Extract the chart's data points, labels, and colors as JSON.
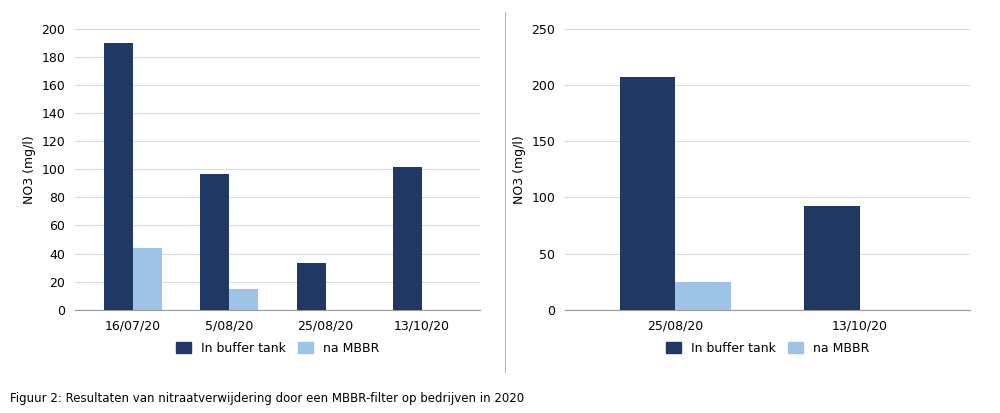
{
  "chart1": {
    "categories": [
      "16/07/20",
      "5/08/20",
      "25/08/20",
      "13/10/20"
    ],
    "in_buffer_tank": [
      190,
      97,
      33,
      102
    ],
    "na_mbbr": [
      44,
      15,
      0,
      0
    ],
    "ylabel": "NO3 (mg/l)",
    "ylim": [
      0,
      200
    ],
    "yticks": [
      0,
      20,
      40,
      60,
      80,
      100,
      120,
      140,
      160,
      180,
      200
    ]
  },
  "chart2": {
    "categories": [
      "25/08/20",
      "13/10/20"
    ],
    "in_buffer_tank": [
      207,
      92
    ],
    "na_mbbr": [
      25,
      0
    ],
    "ylabel": "NO3 (mg/l)",
    "ylim": [
      0,
      250
    ],
    "yticks": [
      0,
      50,
      100,
      150,
      200,
      250
    ]
  },
  "color_dark": "#1F3864",
  "color_light": "#9DC3E6",
  "legend_labels": [
    "In buffer tank",
    "na MBBR"
  ],
  "caption": "Figuur 2: Resultaten van nitraatverwijdering door een MBBR-filter op bedrijven in 2020",
  "background_color": "#FFFFFF",
  "grid_color": "#D9D9D9"
}
